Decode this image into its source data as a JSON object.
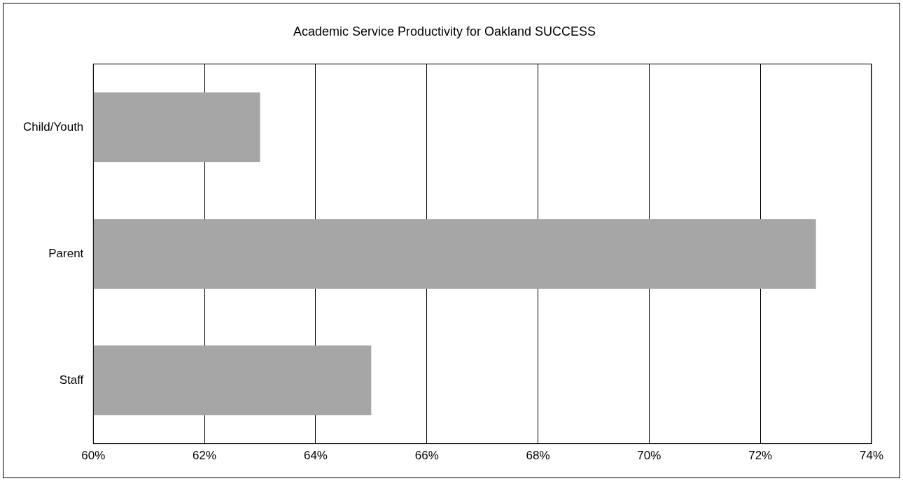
{
  "chart_data": {
    "type": "bar",
    "orientation": "horizontal",
    "title": "Academic Service Productivity for Oakland SUCCESS",
    "categories": [
      "Child/Youth",
      "Parent",
      "Staff"
    ],
    "values": [
      63,
      73,
      65
    ],
    "color": "#a6a6a6",
    "xlim": [
      60,
      74
    ],
    "xticks": [
      {
        "value": 60,
        "label": "60%"
      },
      {
        "value": 62,
        "label": "62%"
      },
      {
        "value": 64,
        "label": "64%"
      },
      {
        "value": 66,
        "label": "66%"
      },
      {
        "value": 68,
        "label": "68%"
      },
      {
        "value": 70,
        "label": "70%"
      },
      {
        "value": 72,
        "label": "72%"
      },
      {
        "value": 74,
        "label": "74%"
      }
    ],
    "grid": "x"
  }
}
